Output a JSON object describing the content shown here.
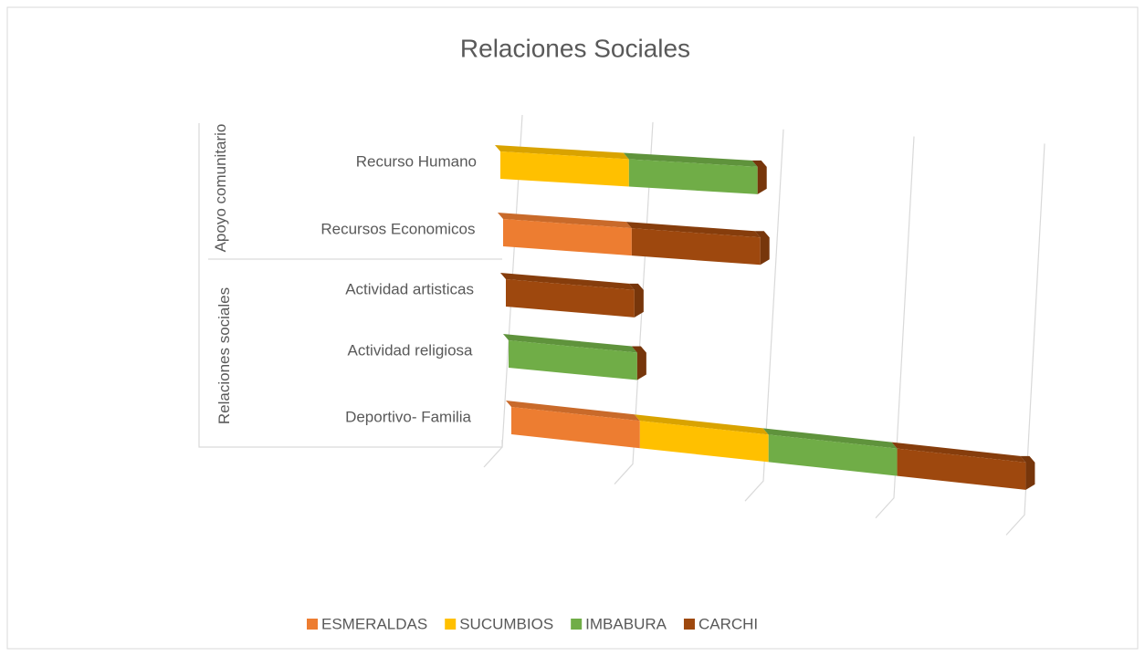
{
  "chart_data": {
    "type": "bar3d_stacked_horizontal",
    "title": "Relaciones Sociales",
    "groups": [
      "Apoyo comunitario",
      "Relaciones sociales"
    ],
    "categories": [
      "Recurso Humano",
      "Recursos Economicos",
      "Actividad artisticas",
      "Actividad religiosa",
      "Deportivo- Familia"
    ],
    "series": [
      {
        "name": "ESMERALDAS",
        "color": "#ed7d31",
        "values": [
          0,
          1,
          0,
          0,
          1
        ]
      },
      {
        "name": "SUCUMBIOS",
        "color": "#ffc000",
        "values": [
          1,
          0,
          0,
          0,
          1
        ]
      },
      {
        "name": "IMBABURA",
        "color": "#70ad47",
        "values": [
          1,
          0,
          0,
          1,
          1
        ]
      },
      {
        "name": "CARCHI",
        "color": "#9e480e",
        "values": [
          0,
          1,
          1,
          0,
          1
        ]
      }
    ],
    "xlim": [
      0,
      4
    ],
    "xticks": [
      0,
      1,
      2,
      3,
      4
    ],
    "grid": true,
    "legend": "bottom"
  }
}
